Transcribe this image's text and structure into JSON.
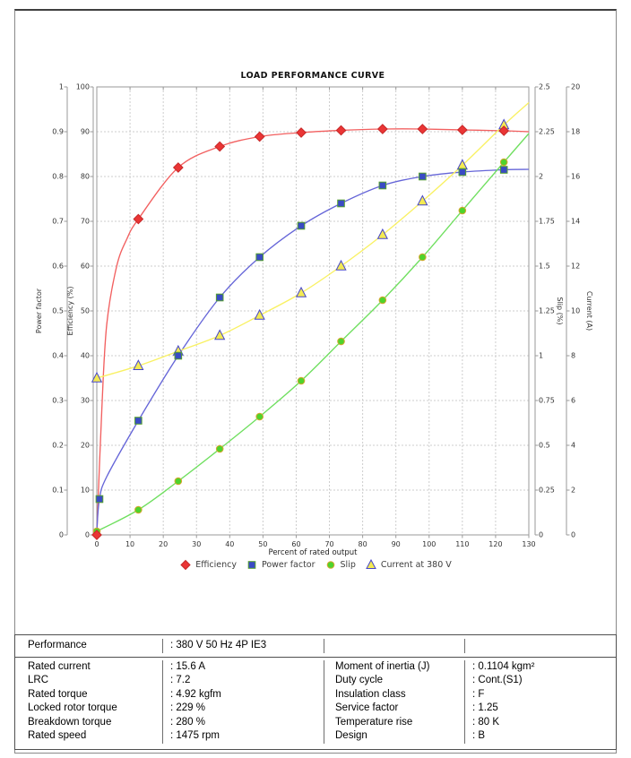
{
  "chart_data": {
    "type": "line",
    "title": "LOAD PERFORMANCE CURVE",
    "xlabel": "Percent of rated output",
    "xlim": [
      0,
      130
    ],
    "x_tick_values": [
      0,
      10,
      20,
      30,
      40,
      50,
      60,
      70,
      80,
      90,
      100,
      110,
      120,
      130
    ],
    "x_tick_labels": [
      "0",
      "10",
      "20",
      "30",
      "40",
      "50",
      "60",
      "70",
      "80",
      "90",
      "100",
      "110",
      "120",
      "130"
    ],
    "grid": true,
    "colors": {
      "grid": "#cdcdcd",
      "axis": "#9a9a9a",
      "text": "#2b2b2b"
    },
    "axes": [
      {
        "id": "power_factor",
        "title": "Power factor",
        "side": "left",
        "slot": "outer",
        "range": [
          0,
          1
        ],
        "tick_values": [
          0,
          0.1,
          0.2,
          0.3,
          0.4,
          0.5,
          0.6,
          0.7,
          0.8,
          0.9,
          1
        ],
        "tick_labels": [
          "0",
          "0.1",
          "0.2",
          "0.3",
          "0.4",
          "0.5",
          "0.6",
          "0.7",
          "0.8",
          "0.9",
          "1"
        ]
      },
      {
        "id": "efficiency",
        "title": "Efficiency (%)",
        "side": "left",
        "slot": "inner",
        "range": [
          0,
          100
        ],
        "tick_values": [
          0,
          10,
          20,
          30,
          40,
          50,
          60,
          70,
          80,
          90,
          100
        ],
        "tick_labels": [
          "0",
          "10",
          "20",
          "30",
          "40",
          "50",
          "60",
          "70",
          "80",
          "90",
          "100"
        ]
      },
      {
        "id": "slip",
        "title": "Slip (%)",
        "side": "right",
        "slot": "inner",
        "range": [
          0,
          2.5
        ],
        "tick_values": [
          0,
          0.25,
          0.5,
          0.75,
          1,
          1.25,
          1.5,
          1.75,
          2,
          2.25,
          2.5
        ],
        "tick_labels": [
          "0",
          "0.25",
          "0.5",
          "0.75",
          "1",
          "1.25",
          "1.5",
          "1.75",
          "2",
          "2.25",
          "2.5"
        ]
      },
      {
        "id": "current",
        "title": "Current (A)",
        "side": "right",
        "slot": "outer",
        "range": [
          0,
          20
        ],
        "tick_values": [
          0,
          2,
          4,
          6,
          8,
          10,
          12,
          14,
          16,
          18,
          20
        ],
        "tick_labels": [
          "0",
          "2",
          "4",
          "6",
          "8",
          "10",
          "12",
          "14",
          "16",
          "18",
          "20"
        ]
      }
    ],
    "series": [
      {
        "name": "Efficiency",
        "axis": "efficiency",
        "marker": "diamond",
        "line_color": "#f26060",
        "marker_fill": "#ea3535",
        "marker_edge": "#c62828",
        "x": [
          0,
          12.5,
          24.5,
          37,
          49,
          61.5,
          73.5,
          86,
          98,
          110,
          122.5
        ],
        "y": [
          0,
          70.5,
          82,
          86.7,
          88.9,
          89.8,
          90.3,
          90.6,
          90.6,
          90.4,
          90.2
        ],
        "line_x": [
          0,
          1.5,
          3,
          6,
          9,
          12.5,
          24.5,
          37,
          49,
          61.5,
          73.5,
          86,
          98,
          110,
          122.5,
          130
        ],
        "line_y": [
          0,
          28,
          47,
          60,
          66,
          70.5,
          82,
          86.7,
          88.9,
          89.8,
          90.3,
          90.6,
          90.6,
          90.4,
          90.2,
          90
        ]
      },
      {
        "name": "Power factor",
        "axis": "power_factor",
        "marker": "square",
        "line_color": "#6565d8",
        "marker_fill": "#3a4bc4",
        "marker_edge": "#55a02e",
        "x": [
          0.8,
          12.5,
          24.5,
          37,
          49,
          61.5,
          73.5,
          86,
          98,
          110,
          122.5
        ],
        "y": [
          0.08,
          0.255,
          0.4,
          0.53,
          0.62,
          0.69,
          0.74,
          0.78,
          0.8,
          0.81,
          0.815
        ],
        "line_x": [
          0,
          0.8,
          3,
          12.5,
          24.5,
          37,
          49,
          61.5,
          73.5,
          86,
          98,
          110,
          122.5,
          130
        ],
        "line_y": [
          0.01,
          0.08,
          0.13,
          0.255,
          0.4,
          0.53,
          0.62,
          0.69,
          0.74,
          0.78,
          0.8,
          0.81,
          0.815,
          0.816
        ]
      },
      {
        "name": "Slip",
        "axis": "slip",
        "marker": "circle",
        "line_color": "#6fdf5f",
        "marker_fill": "#4ed32c",
        "marker_edge": "#d9a62e",
        "x": [
          0,
          12.5,
          24.5,
          37,
          49,
          61.5,
          73.5,
          86,
          98,
          110,
          122.5
        ],
        "y": [
          0.02,
          0.14,
          0.3,
          0.48,
          0.66,
          0.86,
          1.08,
          1.31,
          1.55,
          1.81,
          2.08
        ],
        "line_x": [
          0,
          12.5,
          24.5,
          37,
          49,
          61.5,
          73.5,
          86,
          98,
          110,
          122.5,
          130
        ],
        "line_y": [
          0.02,
          0.14,
          0.3,
          0.48,
          0.66,
          0.86,
          1.08,
          1.31,
          1.55,
          1.81,
          2.08,
          2.24
        ]
      },
      {
        "name": "Current at 380 V",
        "axis": "current",
        "marker": "triangle",
        "line_color": "#f9f163",
        "marker_fill": "#f3ea53",
        "marker_edge": "#4747c9",
        "x": [
          0,
          12.5,
          24.5,
          37,
          49,
          61.5,
          73.5,
          86,
          98,
          110,
          122.5
        ],
        "y": [
          7,
          7.55,
          8.2,
          8.9,
          9.8,
          10.8,
          12,
          13.4,
          14.9,
          16.5,
          18.3
        ],
        "line_x": [
          0,
          12.5,
          24.5,
          37,
          49,
          61.5,
          73.5,
          86,
          98,
          110,
          122.5,
          130
        ],
        "line_y": [
          7,
          7.55,
          8.2,
          8.9,
          9.8,
          10.8,
          12,
          13.4,
          14.9,
          16.5,
          18.3,
          19.3
        ]
      }
    ]
  },
  "table": {
    "header": {
      "label": "Performance",
      "value": ": 380 V 50 Hz 4P IE3"
    },
    "rows": [
      {
        "l1": "Rated current",
        "v1": ": 15.6 A",
        "l2": "Moment of inertia (J)",
        "v2": ": 0.1104 kgm²"
      },
      {
        "l1": "LRC",
        "v1": ": 7.2",
        "l2": "Duty cycle",
        "v2": ": Cont.(S1)"
      },
      {
        "l1": "Rated torque",
        "v1": ": 4.92 kgfm",
        "l2": "Insulation class",
        "v2": ": F"
      },
      {
        "l1": "Locked rotor torque",
        "v1": ": 229 %",
        "l2": "Service factor",
        "v2": ": 1.25"
      },
      {
        "l1": "Breakdown torque",
        "v1": ": 280 %",
        "l2": "Temperature rise",
        "v2": ": 80 K"
      },
      {
        "l1": "Rated speed",
        "v1": ": 1475 rpm",
        "l2": "Design",
        "v2": ": B"
      }
    ]
  }
}
